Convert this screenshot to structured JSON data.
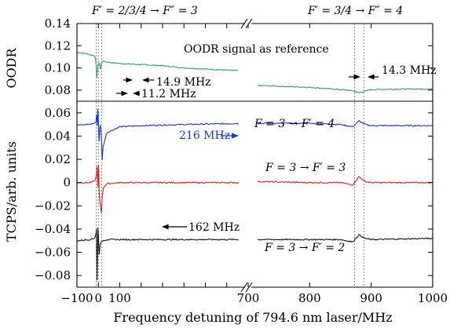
{
  "chart_data": {
    "type": "line",
    "xlabel": "Frequency detuning of 794.6 nm laser/MHz",
    "x_axis": {
      "broken": true,
      "segments": [
        {
          "range": [
            -100,
            700
          ],
          "ticks": [
            -100,
            0,
            100,
            200,
            300,
            400,
            500,
            600,
            700
          ],
          "tick_labels": [
            "−100",
            "0",
            "100",
            "",
            "",
            "",
            "",
            "",
            "700"
          ]
        },
        {
          "range": [
            700,
            1000
          ],
          "ticks": [
            700,
            800,
            900,
            1000
          ],
          "tick_labels": [
            "700",
            "800",
            "900",
            "1000"
          ]
        }
      ]
    },
    "panels": [
      {
        "name": "top",
        "ylabel": "OODR",
        "ylim": [
          0.07,
          0.14
        ],
        "yticks": [
          0.08,
          0.1,
          0.12,
          0.14
        ],
        "ytick_labels": [
          "0.08",
          "0.10",
          "0.12",
          "0.14"
        ],
        "series": [
          {
            "name": "OODR signal as reference",
            "color": "#2e9a78",
            "x": [
              -100,
              -60,
              -20,
              -16,
              -12,
              -9,
              -7,
              -5,
              -3,
              0,
              2,
              4,
              6,
              8,
              10,
              14,
              20,
              50,
              100,
              200,
              300,
              400,
              500,
              600,
              700,
              700,
              800,
              850,
              870,
              880,
              890,
              900,
              950,
              1000
            ],
            "y": [
              0.114,
              0.113,
              0.111,
              0.11,
              0.106,
              0.099,
              0.091,
              0.096,
              0.103,
              0.102,
              0.103,
              0.105,
              0.103,
              0.101,
              0.099,
              0.104,
              0.106,
              0.105,
              0.104,
              0.103,
              0.102,
              0.1,
              0.099,
              0.098,
              0.097,
              0.0845,
              0.0825,
              0.0805,
              0.0795,
              0.0775,
              0.079,
              0.0805,
              0.081,
              0.081
            ]
          }
        ]
      },
      {
        "name": "bottom",
        "ylabel": "TCPS/arb. units",
        "ylim": [
          -0.09,
          0.07
        ],
        "yticks": [
          -0.08,
          -0.06,
          -0.04,
          -0.02,
          0,
          0.02,
          0.04,
          0.06
        ],
        "ytick_labels": [
          "−0.08",
          "−0.06",
          "−0.04",
          "−0.02",
          "0",
          "0.02",
          "0.04",
          "0.06"
        ],
        "series": [
          {
            "name": "F = 3 → F′ = 4",
            "color": "#1736e0",
            "x": [
              -100,
              -40,
              -20,
              -12,
              -8,
              -5,
              -3,
              -1,
              0,
              2,
              4,
              6,
              10,
              14,
              18,
              22,
              40,
              100,
              200,
              400,
              700,
              700,
              800,
              850,
              870,
              880,
              890,
              900,
              1000
            ],
            "y": [
              0.05,
              0.05,
              0.051,
              0.052,
              0.058,
              0.049,
              0.063,
              0.06,
              0.054,
              0.04,
              0.036,
              0.047,
              0.049,
              0.038,
              0.02,
              0.031,
              0.043,
              0.048,
              0.049,
              0.05,
              0.051,
              0.051,
              0.051,
              0.05,
              0.048,
              0.053,
              0.05,
              0.049,
              0.049
            ]
          },
          {
            "name": "F = 3 → F′ = 3",
            "color": "#e02020",
            "x": [
              -100,
              -40,
              -20,
              -12,
              -8,
              -6,
              -4,
              -2,
              0,
              2,
              4,
              6,
              10,
              14,
              18,
              24,
              40,
              100,
              200,
              400,
              700,
              700,
              800,
              850,
              870,
              880,
              890,
              900,
              1000
            ],
            "y": [
              0.0,
              0.0,
              0.001,
              0.004,
              0.008,
              0.014,
              0.0,
              -0.004,
              0.015,
              0.01,
              -0.008,
              -0.015,
              -0.02,
              -0.026,
              -0.012,
              -0.004,
              -0.001,
              0.0,
              0.0,
              0.0,
              0.0,
              0.001,
              0.0,
              0.0,
              -0.002,
              0.005,
              0.001,
              0.0,
              0.0
            ]
          },
          {
            "name": "F = 3 → F′ = 2",
            "color": "#111111",
            "x": [
              -100,
              -40,
              -20,
              -12,
              -9,
              -6,
              -4,
              -2,
              0,
              2,
              4,
              6,
              8,
              12,
              20,
              40,
              60,
              100,
              200,
              400,
              700,
              700,
              800,
              850,
              870,
              880,
              890,
              900,
              1000
            ],
            "y": [
              -0.05,
              -0.049,
              -0.048,
              -0.045,
              -0.04,
              -0.084,
              -0.06,
              -0.039,
              -0.046,
              -0.055,
              -0.062,
              -0.057,
              -0.053,
              -0.052,
              -0.05,
              -0.049,
              -0.049,
              -0.049,
              -0.049,
              -0.049,
              -0.049,
              -0.049,
              -0.049,
              -0.049,
              -0.051,
              -0.045,
              -0.048,
              -0.049,
              -0.048
            ]
          }
        ]
      }
    ],
    "reference_lines_x": [
      -10,
      0,
      15,
      873,
      888
    ],
    "header_labels": [
      "F′ = 2/3/4 → F″ = 3",
      "F′ = 3/4 → F″ = 4"
    ],
    "annotations": [
      "OODR signal as reference",
      "14.9 MHz",
      "11.2 MHz",
      "14.3 MHz",
      "216 MHz",
      "162 MHz"
    ],
    "series_labels": [
      "F = 3 → F′ = 4",
      "F = 3 → F′ = 3",
      "F = 3 → F′ = 2"
    ]
  }
}
